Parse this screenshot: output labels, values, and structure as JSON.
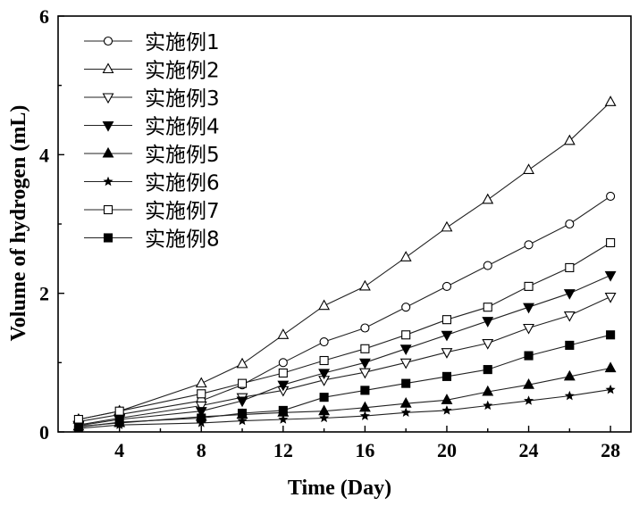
{
  "chart_data": {
    "type": "line",
    "xlabel": "Time (Day)",
    "ylabel": "Volume of hydrogen (mL)",
    "xlim": [
      1,
      29
    ],
    "ylim": [
      0,
      6
    ],
    "xticks": [
      4,
      8,
      12,
      16,
      20,
      24,
      28
    ],
    "yticks": [
      0,
      2,
      4,
      6
    ],
    "legend_position": "top-left",
    "series": [
      {
        "name": "实施例1",
        "marker": "circle-open",
        "x": [
          2,
          4,
          8,
          10,
          12,
          14,
          16,
          18,
          20,
          22,
          24,
          26,
          28
        ],
        "values": [
          0.15,
          0.25,
          0.45,
          0.68,
          1.0,
          1.3,
          1.5,
          1.8,
          2.1,
          2.4,
          2.7,
          3.0,
          3.4
        ]
      },
      {
        "name": "实施例2",
        "marker": "triangle-up-open",
        "x": [
          2,
          4,
          8,
          10,
          12,
          14,
          16,
          18,
          20,
          22,
          24,
          26,
          28
        ],
        "values": [
          0.18,
          0.3,
          0.7,
          0.98,
          1.4,
          1.82,
          2.1,
          2.52,
          2.95,
          3.35,
          3.78,
          4.2,
          4.76
        ]
      },
      {
        "name": "实施例3",
        "marker": "triangle-down-open",
        "x": [
          2,
          4,
          8,
          10,
          12,
          14,
          16,
          18,
          20,
          22,
          24,
          26,
          28
        ],
        "values": [
          0.1,
          0.2,
          0.38,
          0.5,
          0.6,
          0.75,
          0.86,
          1.0,
          1.15,
          1.28,
          1.5,
          1.68,
          1.95
        ]
      },
      {
        "name": "实施例4",
        "marker": "triangle-down-filled",
        "x": [
          2,
          4,
          8,
          10,
          12,
          14,
          16,
          18,
          20,
          22,
          24,
          26,
          28
        ],
        "values": [
          0.09,
          0.18,
          0.3,
          0.45,
          0.68,
          0.85,
          1.0,
          1.2,
          1.4,
          1.6,
          1.8,
          2.0,
          2.26
        ]
      },
      {
        "name": "实施例5",
        "marker": "triangle-up-filled",
        "x": [
          2,
          4,
          8,
          10,
          12,
          14,
          16,
          18,
          20,
          22,
          24,
          26,
          28
        ],
        "values": [
          0.08,
          0.13,
          0.22,
          0.25,
          0.28,
          0.3,
          0.35,
          0.41,
          0.46,
          0.58,
          0.68,
          0.8,
          0.92
        ]
      },
      {
        "name": "实施例6",
        "marker": "star-filled",
        "x": [
          2,
          4,
          8,
          10,
          12,
          14,
          16,
          18,
          20,
          22,
          24,
          26,
          28
        ],
        "values": [
          0.05,
          0.1,
          0.13,
          0.16,
          0.18,
          0.2,
          0.23,
          0.28,
          0.31,
          0.38,
          0.45,
          0.52,
          0.61
        ]
      },
      {
        "name": "实施例7",
        "marker": "square-open",
        "x": [
          2,
          4,
          8,
          10,
          12,
          14,
          16,
          18,
          20,
          22,
          24,
          26,
          28
        ],
        "values": [
          0.18,
          0.3,
          0.55,
          0.7,
          0.85,
          1.03,
          1.2,
          1.4,
          1.62,
          1.8,
          2.1,
          2.37,
          2.73
        ]
      },
      {
        "name": "实施例8",
        "marker": "square-filled",
        "x": [
          2,
          4,
          8,
          10,
          12,
          14,
          16,
          18,
          20,
          22,
          24,
          26,
          28
        ],
        "values": [
          0.07,
          0.14,
          0.2,
          0.27,
          0.31,
          0.5,
          0.6,
          0.7,
          0.8,
          0.9,
          1.1,
          1.25,
          1.4
        ]
      }
    ]
  }
}
